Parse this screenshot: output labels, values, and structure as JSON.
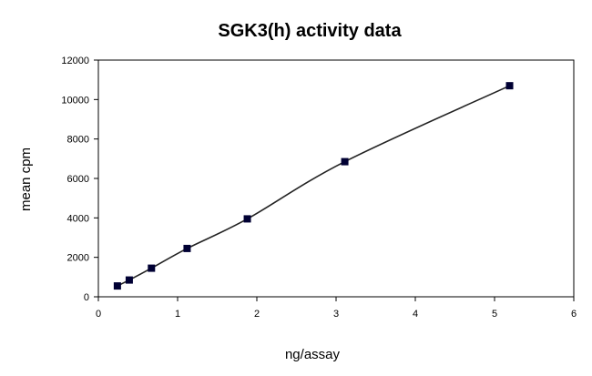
{
  "chart_data": {
    "type": "line",
    "title": "SGK3(h) activity data",
    "xlabel": "ng/assay",
    "ylabel": "mean cpm",
    "xlim": [
      0,
      6
    ],
    "ylim": [
      0,
      12000
    ],
    "x_ticks": [
      "0",
      "1",
      "2",
      "3",
      "4",
      "5",
      "6"
    ],
    "y_ticks": [
      "0",
      "2000",
      "4000",
      "6000",
      "8000",
      "10000",
      "12000"
    ],
    "grid": false,
    "legend": "none",
    "series": [
      {
        "x": [
          0.24,
          0.39,
          0.67,
          1.12,
          1.88,
          3.11,
          5.19
        ],
        "y": [
          550,
          850,
          1450,
          2450,
          3950,
          6850,
          10700
        ],
        "color": "#000033",
        "smooth": true,
        "marker": "square"
      }
    ]
  }
}
